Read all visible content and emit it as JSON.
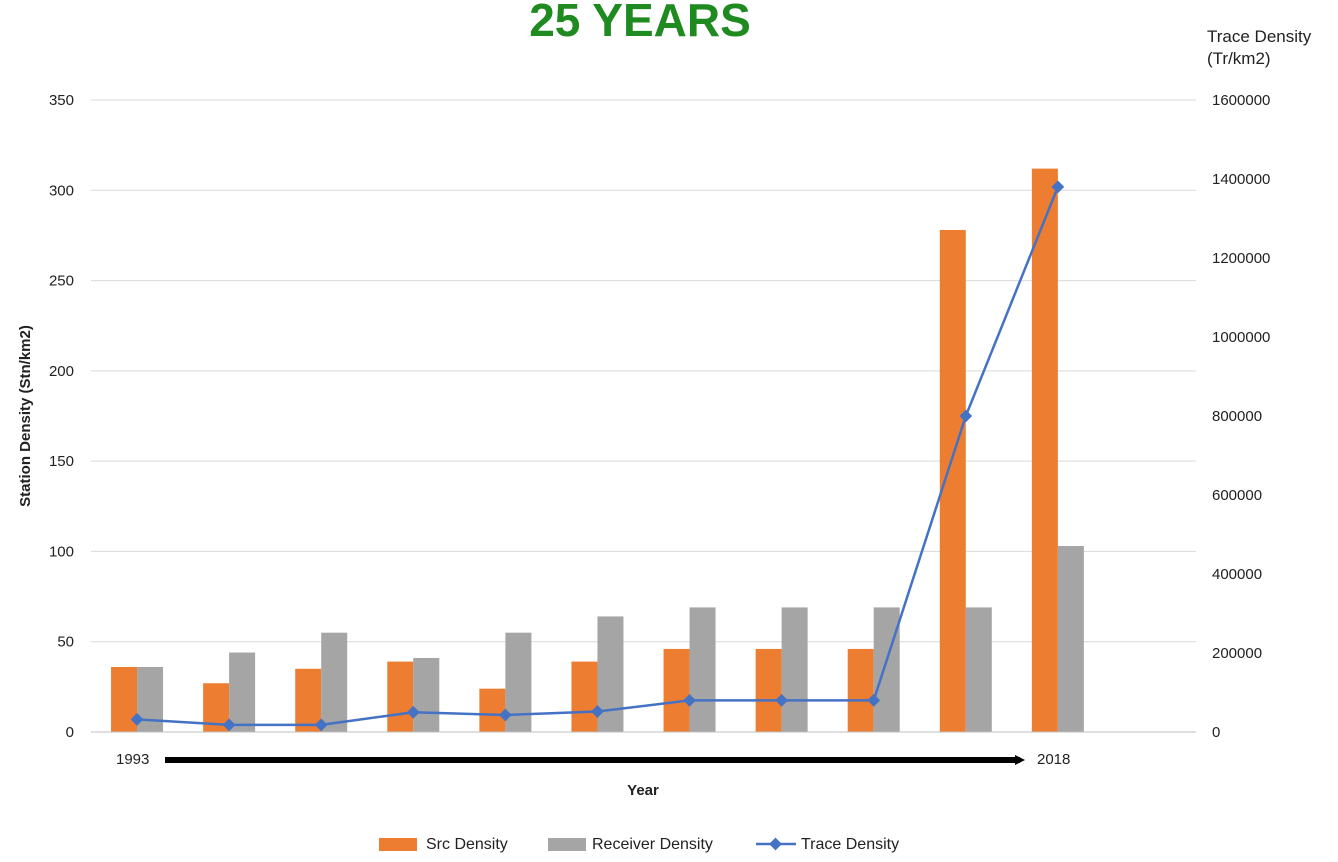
{
  "chart_data": {
    "type": "bar",
    "title": "25 YEARS",
    "xlabel": "Year",
    "ylabel": "Station Density (Stn/km2)",
    "y2label": [
      "Trace Density",
      "(Tr/km2)"
    ],
    "ylim": [
      0,
      350
    ],
    "y2lim": [
      0,
      1600000
    ],
    "yticks": [
      0,
      50,
      100,
      150,
      200,
      250,
      300,
      350
    ],
    "y2ticks": [
      0,
      200000,
      400000,
      600000,
      800000,
      1000000,
      1200000,
      1400000,
      1600000
    ],
    "grid": true,
    "legend_position": "bottom",
    "category_count": 12,
    "x_start_label": "1993",
    "x_end_label": "2018",
    "series": [
      {
        "name": "Src Density",
        "kind": "bar",
        "axis": "left",
        "color": "#ed7d31",
        "values": [
          36,
          27,
          35,
          39,
          24,
          39,
          46,
          46,
          46,
          278,
          312,
          null
        ]
      },
      {
        "name": "Receiver Density",
        "kind": "bar",
        "axis": "left",
        "color": "#a5a5a5",
        "values": [
          36,
          44,
          55,
          41,
          55,
          64,
          69,
          69,
          69,
          69,
          103,
          null
        ]
      },
      {
        "name": "Trace Density",
        "kind": "line",
        "axis": "right",
        "color": "#4472c4",
        "values": [
          32000,
          18000,
          18000,
          50000,
          43000,
          52000,
          80000,
          80000,
          80000,
          800000,
          1380000,
          null
        ]
      }
    ]
  }
}
